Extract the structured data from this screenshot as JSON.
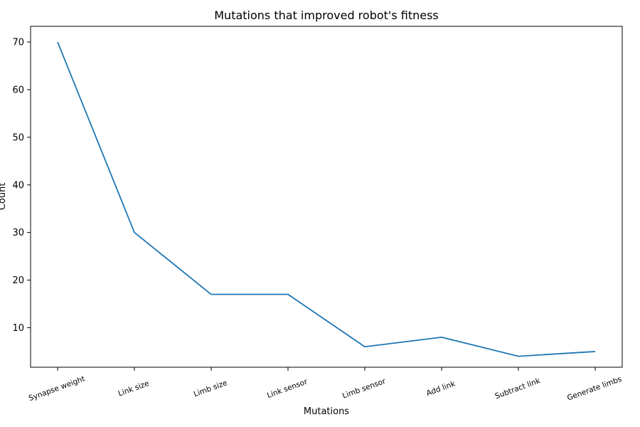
{
  "chart_data": {
    "type": "line",
    "title": "Mutations that improved robot's fitness",
    "xlabel": "Mutations",
    "ylabel": "Count",
    "categories": [
      "Synapse weight",
      "Link size",
      "Limb size",
      "Link sensor",
      "Limb sensor",
      "Add link",
      "Subtract link",
      "Generate limbs"
    ],
    "series": [
      {
        "values": [
          70,
          30,
          17,
          17,
          6,
          8,
          4,
          5
        ],
        "color": "#1f77b4"
      }
    ],
    "yticks": [
      10,
      20,
      30,
      40,
      50,
      60,
      70
    ],
    "ylim": [
      1.7,
      73.3
    ],
    "grid": false,
    "legend": "none"
  }
}
